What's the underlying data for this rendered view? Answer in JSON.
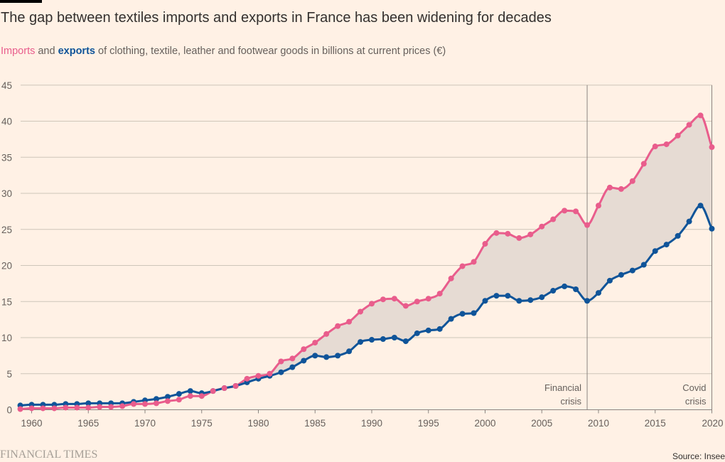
{
  "header": {
    "title": "The gap between textiles imports and exports in France has been widening for decades",
    "subtitle_imports": "Imports",
    "subtitle_and": " and ",
    "subtitle_exports": "exports",
    "subtitle_rest": " of clothing, textile, leather and footwear goods in billions at current prices (€)"
  },
  "footer": {
    "brand": "FINANCIAL TIMES",
    "source": "Source: Insee"
  },
  "colors": {
    "background": "#FFF1E5",
    "imports": "#E95D8C",
    "exports": "#0F5499",
    "gap_fill": "#E6DBD3",
    "gridline": "#CEC6B9",
    "annotation_line": "#8A8580"
  },
  "chart_data": {
    "type": "line",
    "title": "The gap between textiles imports and exports in France has been widening for decades",
    "xlabel": "",
    "ylabel": "€bn (current prices)",
    "xlim": [
      1959,
      2020
    ],
    "ylim": [
      0,
      45
    ],
    "yticks": [
      0,
      5,
      10,
      15,
      20,
      25,
      30,
      35,
      40,
      45
    ],
    "xticks": [
      1960,
      1965,
      1970,
      1975,
      1980,
      1985,
      1990,
      1995,
      2000,
      2005,
      2010,
      2015,
      2020
    ],
    "grid": "horizontal",
    "legend": "inline-subtitle",
    "x": [
      1959,
      1960,
      1961,
      1962,
      1963,
      1964,
      1965,
      1966,
      1967,
      1968,
      1969,
      1970,
      1971,
      1972,
      1973,
      1974,
      1975,
      1976,
      1977,
      1978,
      1979,
      1980,
      1981,
      1982,
      1983,
      1984,
      1985,
      1986,
      1987,
      1988,
      1989,
      1990,
      1991,
      1992,
      1993,
      1994,
      1995,
      1996,
      1997,
      1998,
      1999,
      2000,
      2001,
      2002,
      2003,
      2004,
      2005,
      2006,
      2007,
      2008,
      2009,
      2010,
      2011,
      2012,
      2013,
      2014,
      2015,
      2016,
      2017,
      2018,
      2019,
      2020
    ],
    "series": [
      {
        "name": "Imports",
        "color": "#E95D8C",
        "values": [
          0.1,
          0.2,
          0.2,
          0.2,
          0.3,
          0.3,
          0.3,
          0.4,
          0.4,
          0.5,
          0.8,
          0.8,
          0.9,
          1.2,
          1.4,
          1.9,
          1.9,
          2.6,
          3.0,
          3.3,
          4.3,
          4.7,
          5.0,
          6.7,
          7.1,
          8.4,
          9.3,
          10.5,
          11.6,
          12.2,
          13.6,
          14.7,
          15.3,
          15.4,
          14.4,
          15.0,
          15.4,
          16.1,
          18.2,
          19.9,
          20.5,
          23.0,
          24.5,
          24.4,
          23.8,
          24.3,
          25.4,
          26.4,
          27.6,
          27.5,
          25.6,
          28.3,
          30.8,
          30.6,
          31.7,
          34.1,
          36.5,
          36.8,
          38.0,
          39.5,
          40.8,
          36.4
        ]
      },
      {
        "name": "Exports",
        "color": "#0F5499",
        "values": [
          0.6,
          0.7,
          0.7,
          0.7,
          0.8,
          0.8,
          0.9,
          0.9,
          0.9,
          0.9,
          1.1,
          1.3,
          1.5,
          1.8,
          2.2,
          2.6,
          2.3,
          2.6,
          3.0,
          3.3,
          3.8,
          4.3,
          4.7,
          5.2,
          5.9,
          6.8,
          7.5,
          7.3,
          7.5,
          8.1,
          9.4,
          9.7,
          9.8,
          10.0,
          9.5,
          10.6,
          11.0,
          11.2,
          12.6,
          13.3,
          13.4,
          15.1,
          15.8,
          15.8,
          15.1,
          15.2,
          15.6,
          16.5,
          17.1,
          16.7,
          15.1,
          16.2,
          17.9,
          18.7,
          19.3,
          20.1,
          22.0,
          22.9,
          24.1,
          26.1,
          28.3,
          25.1
        ]
      }
    ],
    "annotations": [
      {
        "x": 2009,
        "label_line1": "Financial",
        "label_line2": "crisis"
      },
      {
        "x": 2020,
        "label_line1": "Covid",
        "label_line2": "crisis"
      }
    ]
  }
}
